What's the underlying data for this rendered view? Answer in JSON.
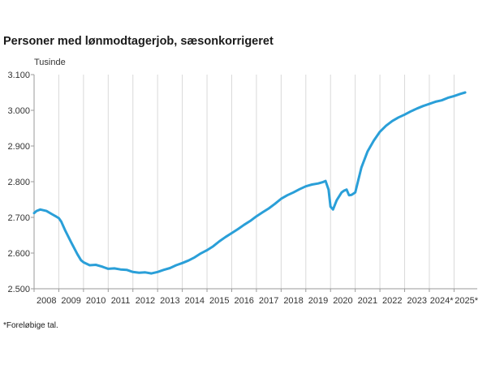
{
  "chart_data": {
    "type": "line",
    "title": "Personer med lønmodtagerjob, sæsonkorrigeret",
    "unit_label": "Tusinde",
    "ylim": [
      2500,
      3100
    ],
    "yticks": [
      2500,
      2600,
      2700,
      2800,
      2900,
      3000,
      3100
    ],
    "ytick_labels": [
      "2.500",
      "2.600",
      "2.700",
      "2.800",
      "2.900",
      "3.000",
      "3.100"
    ],
    "xlim": [
      2008.0,
      2025.94
    ],
    "x_tick_positions": [
      2008,
      2009,
      2010,
      2011,
      2012,
      2013,
      2014,
      2015,
      2016,
      2017,
      2018,
      2019,
      2020,
      2021,
      2022,
      2023,
      2024,
      2025
    ],
    "x_labels": [
      "2008",
      "2009",
      "2010",
      "2011",
      "2012",
      "2013",
      "2014",
      "2015",
      "2016",
      "2017",
      "2018",
      "2019",
      "2020",
      "2021",
      "2022",
      "2023",
      "2024*",
      "2025*"
    ],
    "grid": "vertical",
    "legend": "none",
    "line_color": "#2a9fd8",
    "series": [
      {
        "x": [
          2008.0,
          2008.1,
          2008.25,
          2008.5,
          2008.75,
          2008.9,
          2009.0,
          2009.1,
          2009.25,
          2009.5,
          2009.75,
          2009.9,
          2010.0,
          2010.25,
          2010.5,
          2010.75,
          2011.0,
          2011.25,
          2011.5,
          2011.75,
          2012.0,
          2012.25,
          2012.5,
          2012.75,
          2013.0,
          2013.25,
          2013.5,
          2013.75,
          2014.0,
          2014.25,
          2014.5,
          2014.75,
          2015.0,
          2015.25,
          2015.5,
          2015.75,
          2016.0,
          2016.25,
          2016.5,
          2016.75,
          2017.0,
          2017.25,
          2017.5,
          2017.75,
          2018.0,
          2018.25,
          2018.5,
          2018.75,
          2019.0,
          2019.25,
          2019.5,
          2019.7,
          2019.8,
          2019.92,
          2020.0,
          2020.1,
          2020.25,
          2020.45,
          2020.55,
          2020.65,
          2020.75,
          2020.85,
          2021.0,
          2021.25,
          2021.5,
          2021.75,
          2022.0,
          2022.25,
          2022.5,
          2022.75,
          2023.0,
          2023.25,
          2023.5,
          2023.75,
          2024.0,
          2024.25,
          2024.5,
          2024.75,
          2025.0,
          2025.25,
          2025.45
        ],
        "y": [
          2712,
          2718,
          2722,
          2718,
          2708,
          2702,
          2698,
          2688,
          2665,
          2630,
          2597,
          2580,
          2574,
          2566,
          2567,
          2562,
          2556,
          2557,
          2554,
          2553,
          2547,
          2545,
          2546,
          2543,
          2547,
          2553,
          2558,
          2566,
          2572,
          2579,
          2588,
          2599,
          2608,
          2619,
          2633,
          2645,
          2656,
          2667,
          2679,
          2690,
          2703,
          2714,
          2725,
          2738,
          2752,
          2762,
          2770,
          2779,
          2787,
          2792,
          2795,
          2799,
          2802,
          2778,
          2730,
          2722,
          2748,
          2770,
          2775,
          2778,
          2762,
          2763,
          2770,
          2840,
          2885,
          2915,
          2940,
          2957,
          2970,
          2980,
          2988,
          2997,
          3005,
          3012,
          3018,
          3024,
          3028,
          3035,
          3040,
          3046,
          3050
        ]
      }
    ],
    "footnote": "*Foreløbige tal."
  }
}
